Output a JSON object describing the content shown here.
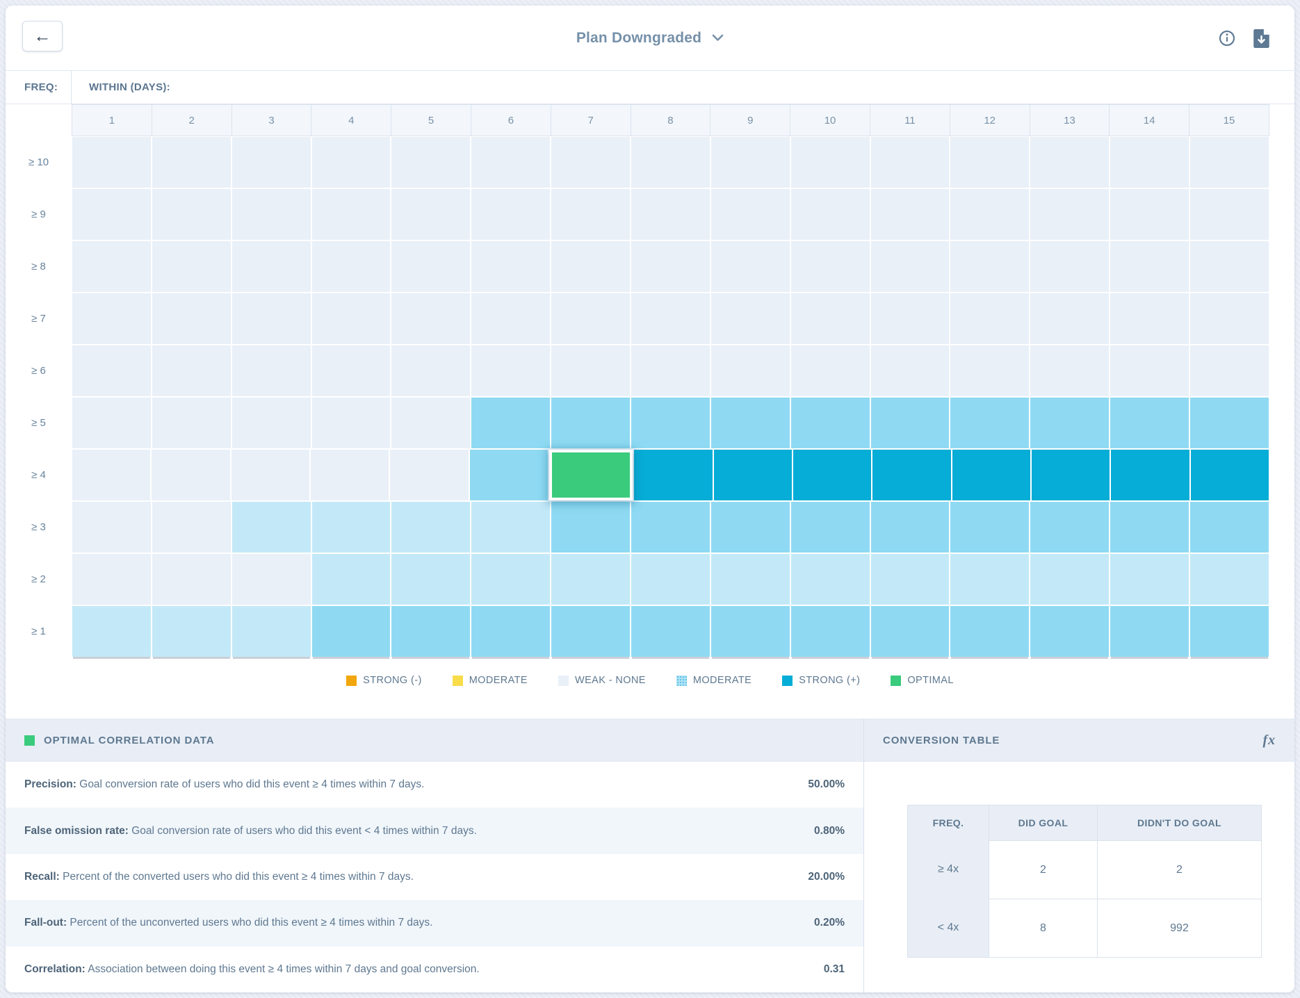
{
  "header": {
    "title": "Plan Downgraded",
    "back_icon": "←",
    "info_icon": "info-circle",
    "download_icon": "file-download"
  },
  "grid": {
    "freq_label": "FREQ:",
    "within_label": "WITHIN (DAYS):",
    "columns": [
      "1",
      "2",
      "3",
      "4",
      "5",
      "6",
      "7",
      "8",
      "9",
      "10",
      "11",
      "12",
      "13",
      "14",
      "15"
    ],
    "rows": [
      {
        "label": "≥ 10",
        "cells": [
          "weak",
          "weak",
          "weak",
          "weak",
          "weak",
          "weak",
          "weak",
          "weak",
          "weak",
          "weak",
          "weak",
          "weak",
          "weak",
          "weak",
          "weak"
        ]
      },
      {
        "label": "≥ 9",
        "cells": [
          "weak",
          "weak",
          "weak",
          "weak",
          "weak",
          "weak",
          "weak",
          "weak",
          "weak",
          "weak",
          "weak",
          "weak",
          "weak",
          "weak",
          "weak"
        ]
      },
      {
        "label": "≥ 8",
        "cells": [
          "weak",
          "weak",
          "weak",
          "weak",
          "weak",
          "weak",
          "weak",
          "weak",
          "weak",
          "weak",
          "weak",
          "weak",
          "weak",
          "weak",
          "weak"
        ]
      },
      {
        "label": "≥ 7",
        "cells": [
          "weak",
          "weak",
          "weak",
          "weak",
          "weak",
          "weak",
          "weak",
          "weak",
          "weak",
          "weak",
          "weak",
          "weak",
          "weak",
          "weak",
          "weak"
        ]
      },
      {
        "label": "≥ 6",
        "cells": [
          "weak",
          "weak",
          "weak",
          "weak",
          "weak",
          "weak",
          "weak",
          "weak",
          "weak",
          "weak",
          "weak",
          "weak",
          "weak",
          "weak",
          "weak"
        ]
      },
      {
        "label": "≥ 5",
        "cells": [
          "weak",
          "weak",
          "weak",
          "weak",
          "weak",
          "moderate",
          "moderate",
          "moderate",
          "moderate",
          "moderate",
          "moderate",
          "moderate",
          "moderate",
          "moderate",
          "moderate"
        ]
      },
      {
        "label": "≥ 4",
        "cells": [
          "weak",
          "weak",
          "weak",
          "weak",
          "weak",
          "moderate",
          "optimal",
          "strong",
          "strong",
          "strong",
          "strong",
          "strong",
          "strong",
          "strong",
          "strong"
        ]
      },
      {
        "label": "≥ 3",
        "cells": [
          "weak",
          "weak",
          "light",
          "light",
          "light",
          "light",
          "moderate",
          "moderate",
          "moderate",
          "moderate",
          "moderate",
          "moderate",
          "moderate",
          "moderate",
          "moderate"
        ]
      },
      {
        "label": "≥ 2",
        "cells": [
          "weak",
          "weak",
          "weak",
          "light",
          "light",
          "light",
          "light",
          "light",
          "light",
          "light",
          "light",
          "light",
          "light",
          "light",
          "light"
        ]
      },
      {
        "label": "≥ 1",
        "cells": [
          "light",
          "light",
          "light",
          "moderate",
          "moderate",
          "moderate",
          "moderate",
          "moderate",
          "moderate",
          "moderate",
          "moderate",
          "moderate",
          "moderate",
          "moderate",
          "moderate"
        ]
      }
    ]
  },
  "legend": [
    {
      "label": "STRONG (-)",
      "swatch": "strong-negative"
    },
    {
      "label": "MODERATE",
      "swatch": "moderate-negative"
    },
    {
      "label": "WEAK - NONE",
      "swatch": "weak"
    },
    {
      "label": "MODERATE",
      "swatch": "moderate"
    },
    {
      "label": "STRONG (+)",
      "swatch": "strong"
    },
    {
      "label": "OPTIMAL",
      "swatch": "optimal"
    }
  ],
  "colors": {
    "strong_negative": "#f2a60d",
    "moderate_negative": "#f8dc4a",
    "weak": "#e9f0f8",
    "light": "#c3e9f8",
    "moderate": "#8fdaf2",
    "strong": "#06add6",
    "optimal": "#3acb7d"
  },
  "optimal_panel": {
    "title": "OPTIMAL CORRELATION DATA",
    "rows": [
      {
        "label": "Precision:",
        "description": "Goal conversion rate of users who did this event ≥ 4 times within 7 days.",
        "value": "50.00%"
      },
      {
        "label": "False omission rate:",
        "description": "Goal conversion rate of users who did this event < 4 times within 7 days.",
        "value": "0.80%"
      },
      {
        "label": "Recall:",
        "description": "Percent of the converted users who did this event ≥ 4 times within 7 days.",
        "value": "20.00%"
      },
      {
        "label": "Fall-out:",
        "description": "Percent of the unconverted users who did this event ≥ 4 times within 7 days.",
        "value": "0.20%"
      },
      {
        "label": "Correlation:",
        "description": "Association between doing this event ≥ 4 times within 7 days and goal conversion.",
        "value": "0.31"
      }
    ]
  },
  "conversion_panel": {
    "title": "CONVERSION TABLE",
    "fx_label": "fx",
    "table": {
      "headers": [
        "FREQ.",
        "DID GOAL",
        "DIDN'T DO GOAL"
      ],
      "rows": [
        {
          "freq": "≥ 4x",
          "did": "2",
          "didnt": "2"
        },
        {
          "freq": "< 4x",
          "did": "8",
          "didnt": "992"
        }
      ]
    }
  }
}
